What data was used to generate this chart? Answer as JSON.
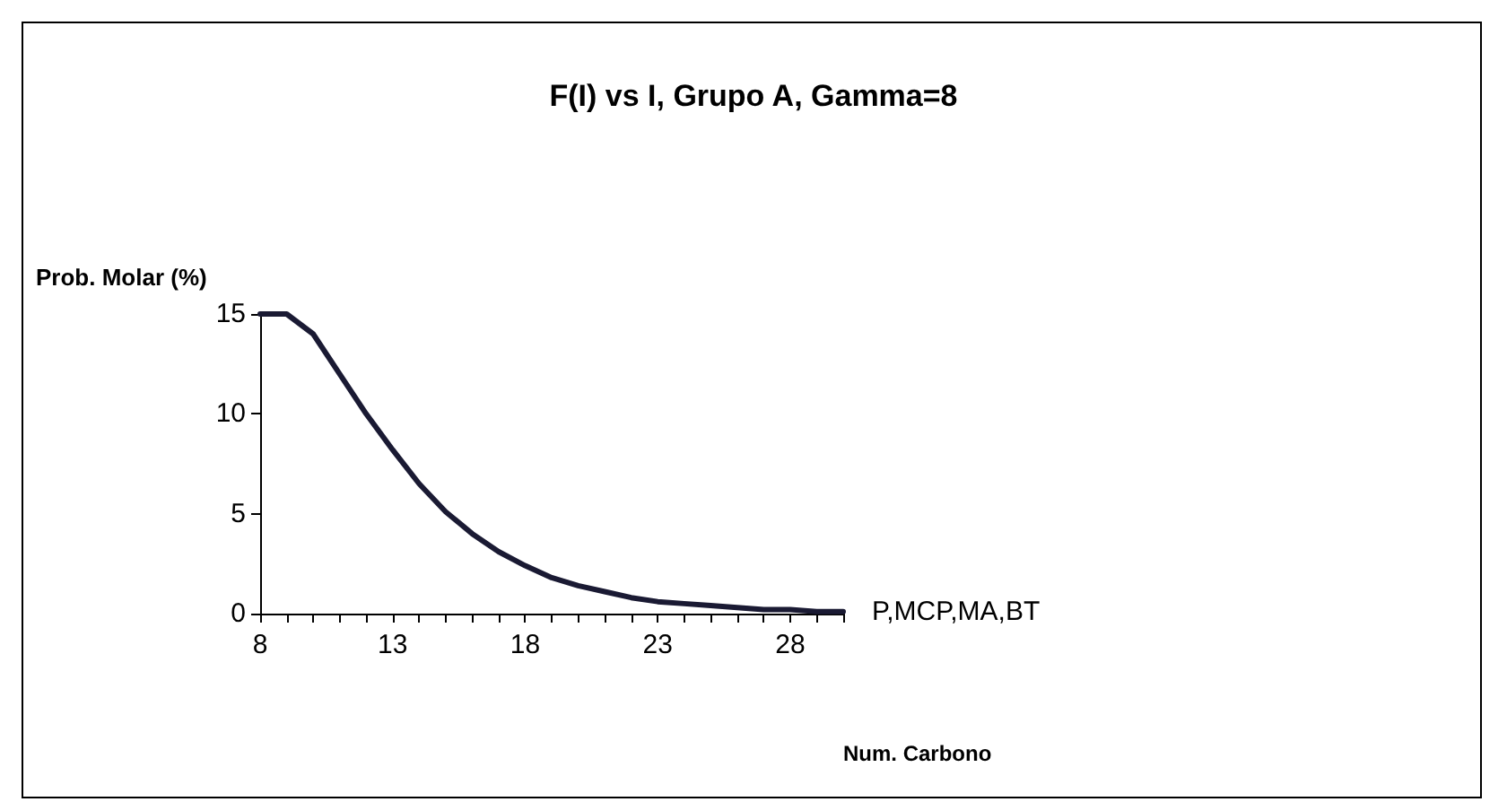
{
  "chart_data": {
    "type": "line",
    "title": "F(I) vs I, Grupo A, Gamma=8",
    "xlabel": "Num. Carbono",
    "ylabel": "Prob. Molar (%)",
    "categories": [
      "8",
      null,
      null,
      null,
      null,
      "13",
      null,
      null,
      null,
      null,
      "18",
      null,
      null,
      null,
      null,
      "23",
      null,
      null,
      null,
      null,
      "28",
      null,
      null
    ],
    "series": [
      {
        "name": "P,MCP,MA,BT",
        "color": "#1a1a33",
        "values": [
          15,
          15,
          14,
          12,
          10,
          8.2,
          6.5,
          5.1,
          4,
          3.1,
          2.4,
          1.8,
          1.4,
          1.1,
          0.8,
          0.6,
          0.5,
          0.4,
          0.3,
          0.2,
          0.2,
          0.1,
          0.1
        ]
      }
    ],
    "ylim": [
      0,
      15
    ],
    "yticks": [
      0,
      5,
      10,
      15
    ],
    "grid": false,
    "legend": false,
    "marker": "none",
    "line_style": "solid"
  }
}
